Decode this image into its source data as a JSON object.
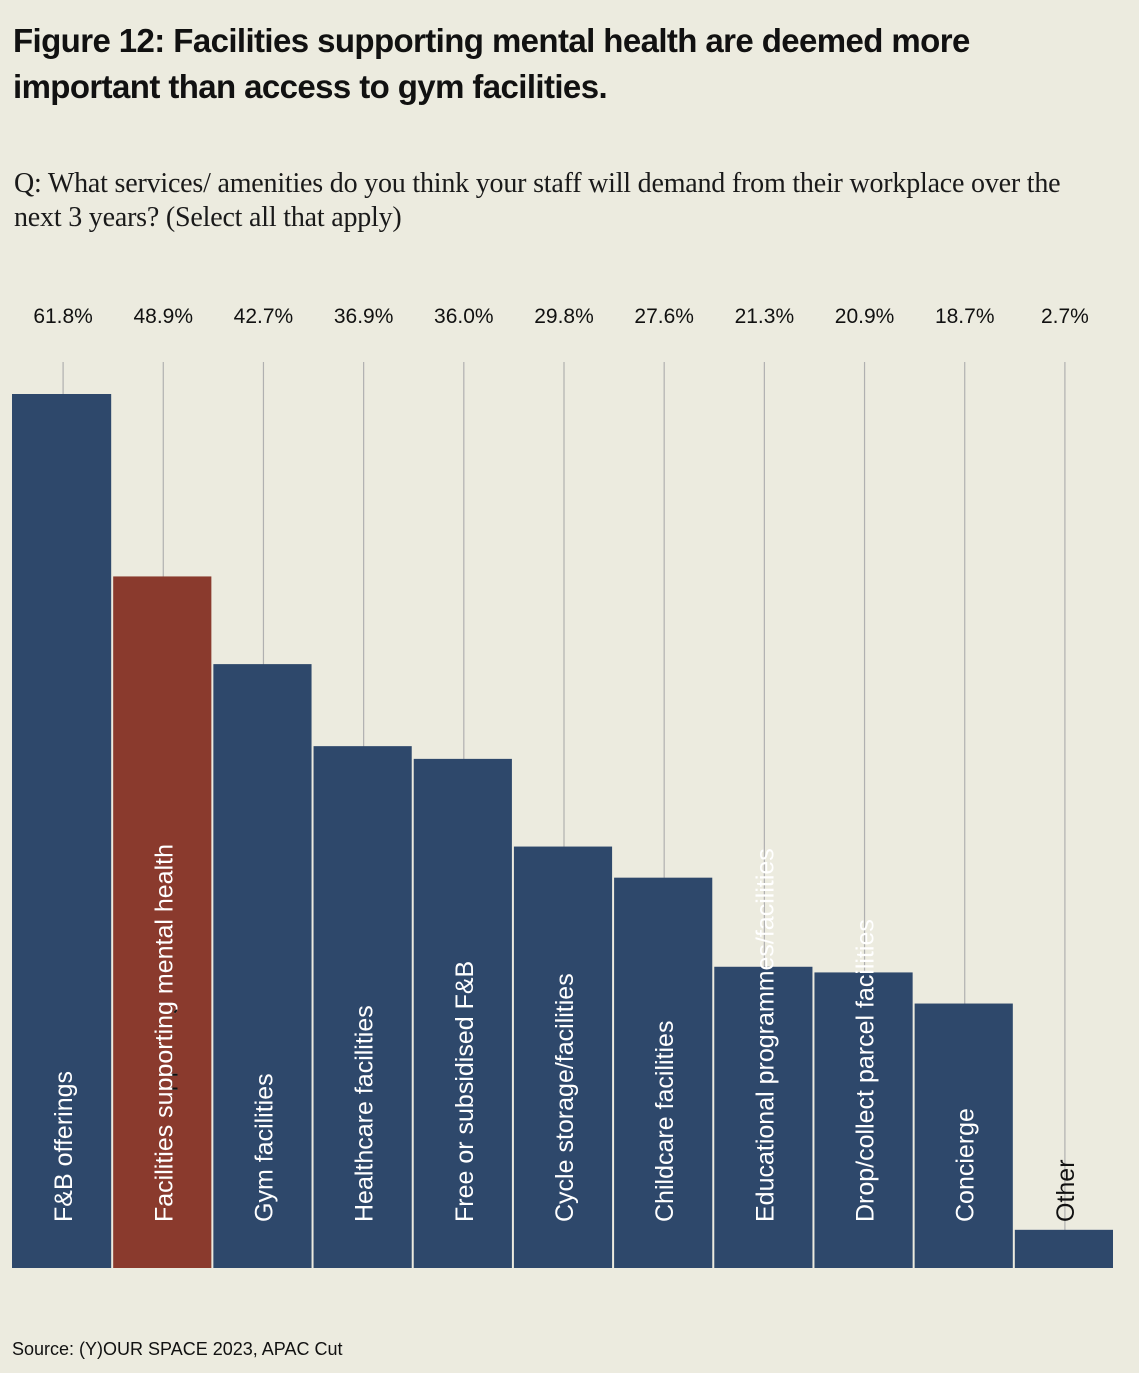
{
  "header": {
    "title": "Figure 12: Facilities supporting mental health are deemed more important than access to gym facilities.",
    "question": "Q: What services/ amenities do you think your staff will demand from their workplace over the next 3 years? (Select all that apply)"
  },
  "footer": {
    "source": "Source: (Y)OUR SPACE 2023, APAC Cut"
  },
  "colors": {
    "background": "#ecebdf",
    "bar_default": "#2e486b",
    "bar_highlight": "#8a3a2d",
    "gridline": "#b0b0b0",
    "label_inside": "#ffffff",
    "label_outside": "#111111"
  },
  "chart_data": {
    "type": "bar",
    "title": "Figure 12: Facilities supporting mental health are deemed more important than access to gym facilities.",
    "subtitle": "Q: What services/ amenities do you think your staff will demand from their workplace over the next 3 years? (Select all that apply)",
    "xlabel": "",
    "ylabel": "",
    "ylim": [
      0,
      61.8
    ],
    "grid": "vertical guide lines from value labels to bars",
    "legend": "none",
    "value_labels_position": "top",
    "category_labels_position": "rotated inside bars",
    "categories": [
      "F&B offerings",
      "Facilities supporting mental health",
      "Gym facilities",
      "Healthcare facilities",
      "Free or subsidised F&B",
      "Cycle storage/facilities",
      "Childcare facilities",
      "Educational programmes/facilities",
      "Drop/collect parcel facilities",
      "Concierge",
      "Other"
    ],
    "values": [
      61.8,
      48.9,
      42.7,
      36.9,
      36.0,
      29.8,
      27.6,
      21.3,
      20.9,
      18.7,
      2.7
    ],
    "value_labels": [
      "61.8%",
      "48.9%",
      "42.7%",
      "36.9%",
      "36.0%",
      "29.8%",
      "27.6%",
      "21.3%",
      "20.9%",
      "18.7%",
      "2.7%"
    ],
    "highlight_index": 1,
    "unit": "%"
  }
}
